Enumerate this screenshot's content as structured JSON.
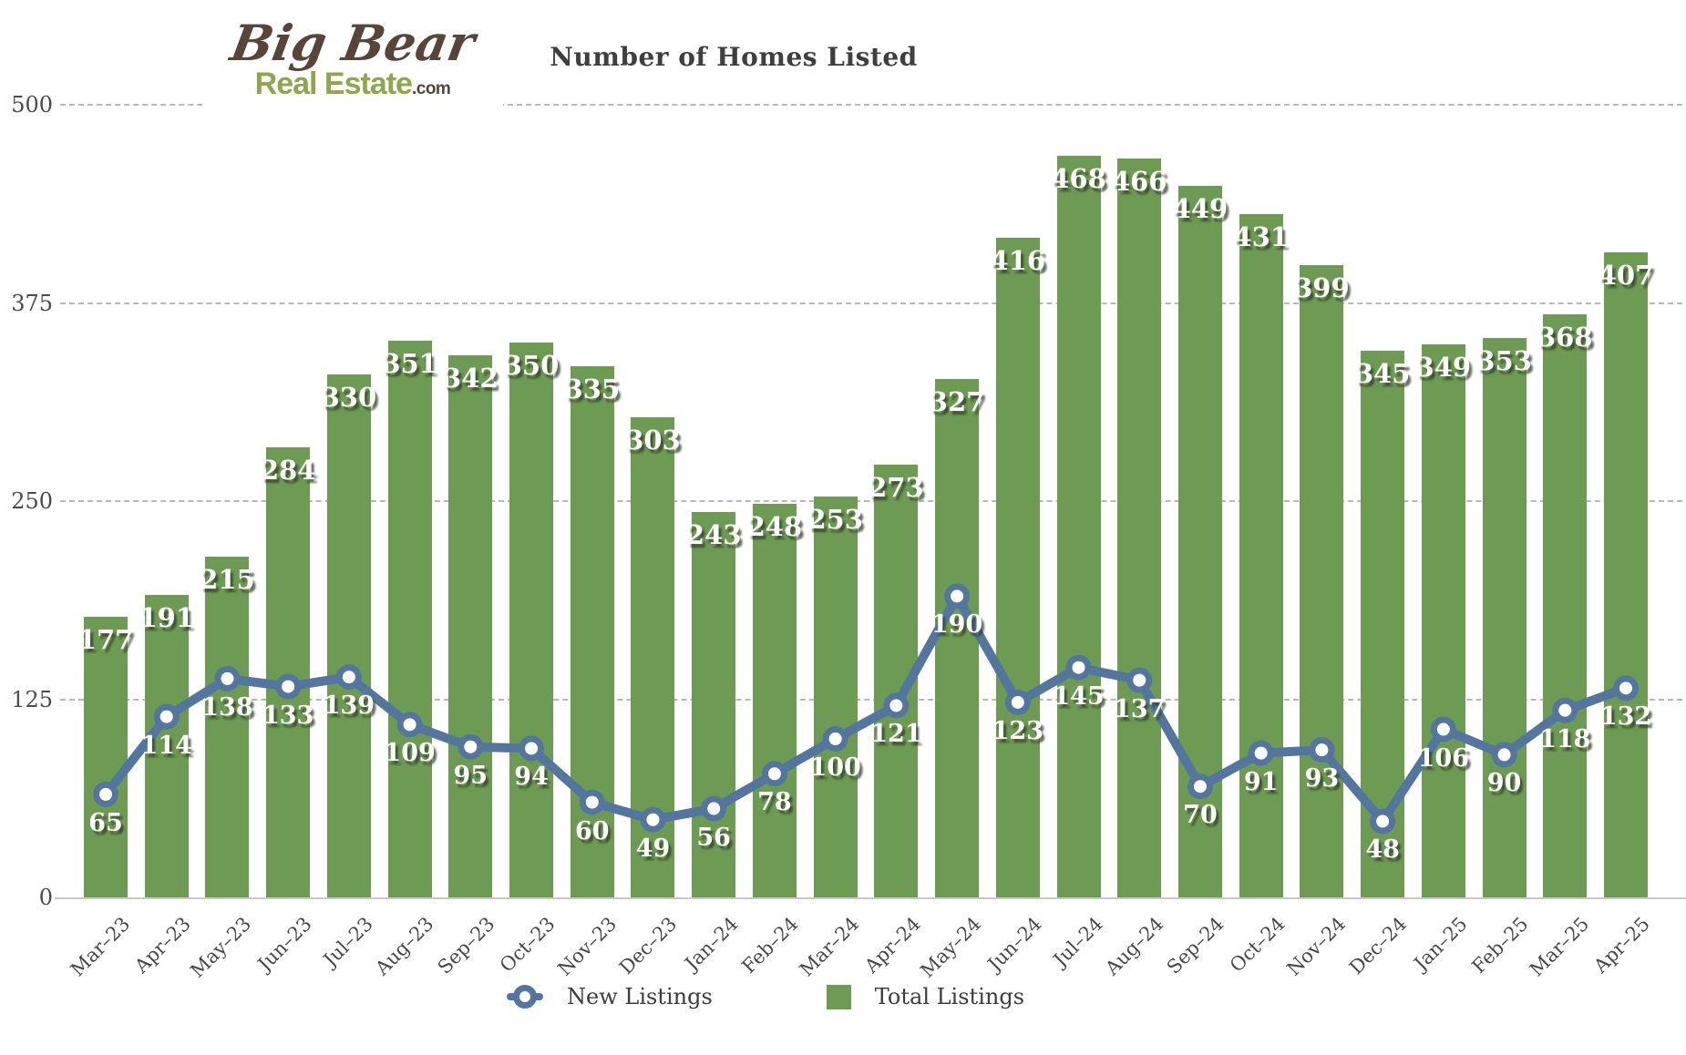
{
  "logo": {
    "line1": "Big Bear",
    "line2": "Real Estate",
    "suffix": ".com"
  },
  "chart_data": {
    "type": "bar",
    "title": "Number of Homes Listed",
    "categories": [
      "Mar–23",
      "Apr–23",
      "May–23",
      "Jun–23",
      "Jul–23",
      "Aug–23",
      "Sep–23",
      "Oct–23",
      "Nov–23",
      "Dec–23",
      "Jan–24",
      "Feb–24",
      "Mar–24",
      "Apr–24",
      "May–24",
      "Jun–24",
      "Jul–24",
      "Aug–24",
      "Sep–24",
      "Oct–24",
      "Nov–24",
      "Dec–24",
      "Jan–25",
      "Feb–25",
      "Mar–25",
      "Apr–25"
    ],
    "series": [
      {
        "name": "New Listings",
        "type": "line",
        "color": "#54769e",
        "values": [
          65,
          114,
          138,
          133,
          139,
          109,
          95,
          94,
          60,
          49,
          56,
          78,
          100,
          121,
          190,
          123,
          145,
          137,
          70,
          91,
          93,
          48,
          106,
          90,
          118,
          132
        ]
      },
      {
        "name": "Total Listings",
        "type": "bar",
        "color": "#6e9b54",
        "values": [
          177,
          191,
          215,
          284,
          330,
          351,
          342,
          350,
          335,
          303,
          243,
          248,
          253,
          273,
          327,
          416,
          468,
          466,
          449,
          431,
          399,
          345,
          349,
          353,
          368,
          407
        ]
      }
    ],
    "ylim": [
      0,
      500
    ],
    "yticks": [
      0,
      125,
      250,
      375,
      500
    ],
    "grid": "horizontal-dashed",
    "legend_position": "bottom",
    "label_color": "#ffffff"
  }
}
